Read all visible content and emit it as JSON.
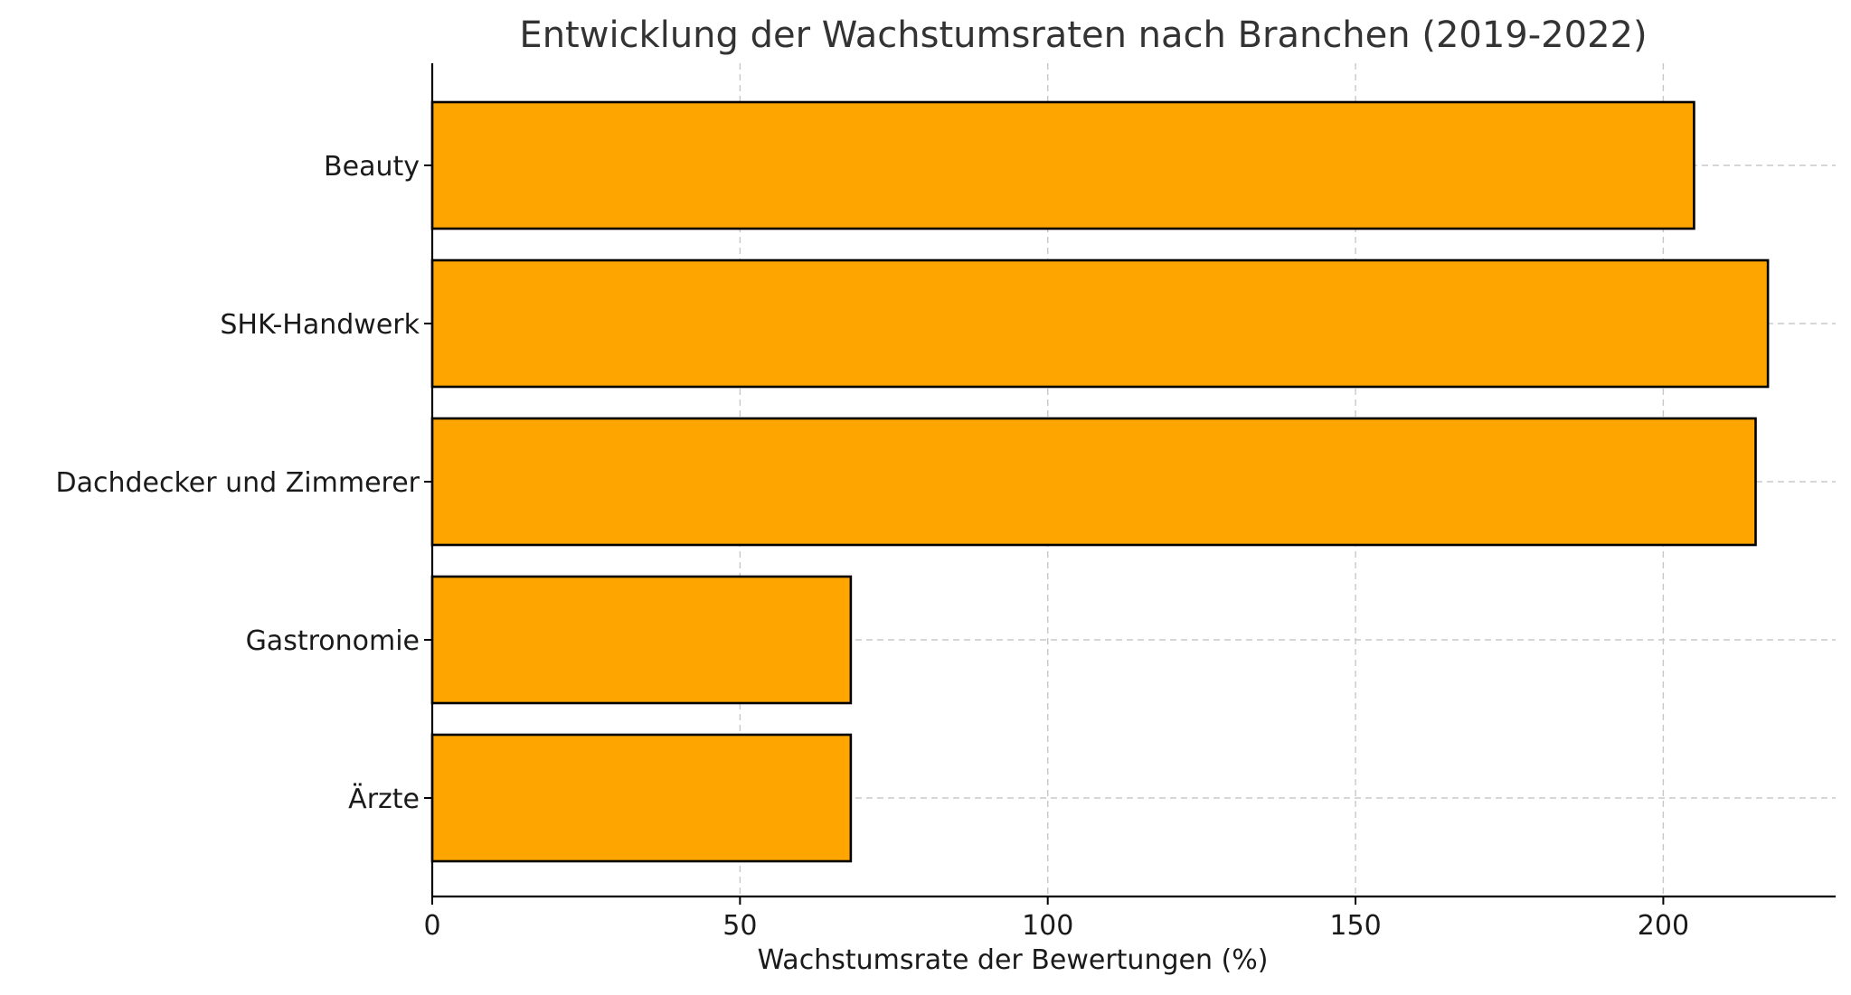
{
  "chart_data": {
    "type": "bar",
    "orientation": "horizontal",
    "title": "Entwicklung der Wachstumsraten nach Branchen (2019-2022)",
    "xlabel": "Wachstumsrate der Bewertungen (%)",
    "ylabel": "",
    "categories": [
      "Beauty",
      "SHK-Handwerk",
      "Dachdecker und Zimmerer",
      "Gastronomie",
      "Ärzte"
    ],
    "values": [
      205,
      217,
      215,
      68,
      68
    ],
    "xlim": [
      0,
      228
    ],
    "xticks": [
      0,
      50,
      100,
      150,
      200
    ],
    "grid": true,
    "bar_color": "#FFA500",
    "edge_color": "#000000"
  }
}
